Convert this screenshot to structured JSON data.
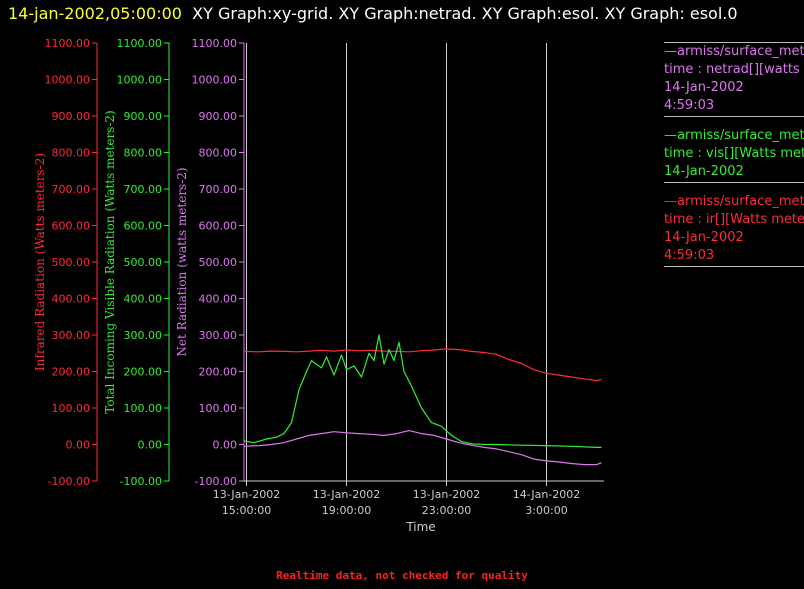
{
  "title": {
    "timestamp": "14-jan-2002,05:00:00",
    "text": "XY Graph:xy-grid.  XY Graph:netrad.  XY Graph:esol.  XY Graph: esol.0"
  },
  "colors": {
    "ir": "#ff2a3a",
    "vis": "#33ee33",
    "net": "#dd77ee",
    "grid": "#cfcfcf",
    "axis_text": "#cccccc"
  },
  "legend": [
    {
      "key": "net",
      "lines": [
        "—armiss/surface_meteorology",
        "time : netrad[][watts meters-2]",
        "14-Jan-2002",
        "4:59:03"
      ]
    },
    {
      "key": "vis",
      "lines": [
        "—armiss/surface_meteorology",
        "time : vis[][Watts meters-2]",
        "14-Jan-2002"
      ]
    },
    {
      "key": "ir",
      "lines": [
        "—armiss/surface_meteorology",
        "time : ir[][Watts meters-2]",
        "14-Jan-2002",
        "4:59:03"
      ]
    }
  ],
  "footer_note": "Realtime data, not checked for quality",
  "chart_data": {
    "type": "line",
    "xlabel": "Time",
    "x_ticks": [
      {
        "h": 15,
        "l1": "13-Jan-2002",
        "l2": "15:00:00"
      },
      {
        "h": 19,
        "l1": "13-Jan-2002",
        "l2": "19:00:00"
      },
      {
        "h": 23,
        "l1": "13-Jan-2002",
        "l2": "23:00:00"
      },
      {
        "h": 27,
        "l1": "14-Jan-2002",
        "l2": "3:00:00"
      }
    ],
    "xlim": [
      14.9,
      29.3
    ],
    "x_unit": "hours after 13-Jan-2002 00:00",
    "ylim": [
      -100,
      1100
    ],
    "y_ticks": [
      -100,
      0,
      100,
      200,
      300,
      400,
      500,
      600,
      700,
      800,
      900,
      1000,
      1100
    ],
    "y_tick_labels": [
      "-100.00",
      "0.00",
      "100.00",
      "200.00",
      "300.00",
      "400.00",
      "500.00",
      "600.00",
      "700.00",
      "800.00",
      "900.00",
      "1000.00",
      "1100.00"
    ],
    "ylabels": {
      "ir": "Infrared Radiation (Watts meters-2)",
      "vis": "Total Incoming Visible Radiation (Watts meters-2)",
      "net": "Net Radiation (watts meters-2)"
    },
    "grid": "vertical lines at x ticks",
    "series": [
      {
        "key": "ir",
        "x": [
          14.9,
          15.5,
          16,
          16.5,
          17,
          17.5,
          18,
          18.5,
          19,
          19.5,
          20,
          20.5,
          21,
          21.5,
          22,
          22.5,
          23,
          23.5,
          24,
          24.5,
          25,
          25.5,
          26,
          26.5,
          27,
          27.5,
          28,
          28.5,
          29,
          29.2
        ],
        "values": [
          255,
          254,
          256,
          255,
          254,
          256,
          258,
          256,
          259,
          257,
          258,
          256,
          255,
          254,
          257,
          259,
          262,
          260,
          255,
          252,
          247,
          233,
          222,
          205,
          195,
          190,
          185,
          180,
          175,
          178
        ]
      },
      {
        "key": "vis",
        "x": [
          14.9,
          15.3,
          15.8,
          16.2,
          16.5,
          16.8,
          17.1,
          17.4,
          17.6,
          18,
          18.2,
          18.5,
          18.8,
          19,
          19.3,
          19.6,
          19.9,
          20.1,
          20.3,
          20.5,
          20.7,
          20.9,
          21.1,
          21.3,
          21.6,
          22,
          22.4,
          22.8,
          23.2,
          23.6,
          24,
          24.5,
          25,
          26,
          27,
          28,
          29,
          29.2
        ],
        "values": [
          10,
          5,
          15,
          20,
          30,
          60,
          150,
          200,
          230,
          210,
          240,
          190,
          245,
          205,
          215,
          185,
          250,
          230,
          300,
          220,
          260,
          230,
          280,
          200,
          160,
          100,
          60,
          50,
          25,
          8,
          2,
          0,
          0,
          -2,
          -3,
          -5,
          -8,
          -8
        ]
      },
      {
        "key": "net",
        "x": [
          14.9,
          15.5,
          16,
          16.5,
          17,
          17.5,
          18,
          18.5,
          19,
          19.5,
          20,
          20.5,
          21,
          21.5,
          22,
          22.5,
          23,
          23.5,
          24,
          24.5,
          25,
          25.5,
          26,
          26.5,
          27,
          27.5,
          28,
          28.5,
          29,
          29.2
        ],
        "values": [
          -5,
          -3,
          0,
          5,
          15,
          25,
          30,
          35,
          32,
          30,
          28,
          25,
          30,
          38,
          30,
          25,
          15,
          5,
          -2,
          -8,
          -12,
          -20,
          -28,
          -40,
          -45,
          -48,
          -52,
          -55,
          -55,
          -50
        ]
      }
    ]
  }
}
